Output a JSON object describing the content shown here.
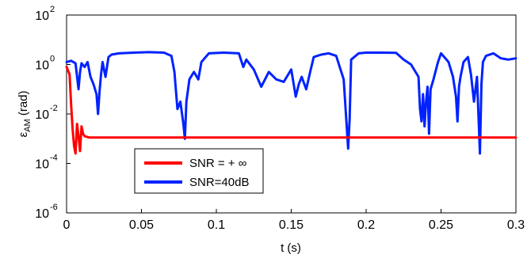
{
  "chart_data": {
    "type": "line",
    "xlabel": "t (s)",
    "ylabel": {
      "base": "ε",
      "sub": "AM",
      "rest": " (rad)"
    },
    "xlim": [
      0,
      0.3
    ],
    "ylim_log10": [
      -6,
      2
    ],
    "yscale": "log",
    "xticks": [
      {
        "v": 0,
        "label": "0"
      },
      {
        "v": 0.05,
        "label": "0.05"
      },
      {
        "v": 0.1,
        "label": "0.1"
      },
      {
        "v": 0.15,
        "label": "0.15"
      },
      {
        "v": 0.2,
        "label": "0.2"
      },
      {
        "v": 0.25,
        "label": "0.25"
      },
      {
        "v": 0.3,
        "label": "0.3"
      }
    ],
    "yticks": [
      {
        "v": -6,
        "base": "10",
        "exp": "-6"
      },
      {
        "v": -4,
        "base": "10",
        "exp": "-4"
      },
      {
        "v": -2,
        "base": "10",
        "exp": "-2"
      },
      {
        "v": 0,
        "base": "10",
        "exp": "0"
      },
      {
        "v": 2,
        "base": "10",
        "exp": "2"
      }
    ],
    "grid": false,
    "legend_position": "lower-left",
    "series": [
      {
        "name": "SNR = + ∞",
        "color": "#ff0000",
        "x": [
          0,
          0.002,
          0.003,
          0.004,
          0.005,
          0.006,
          0.007,
          0.008,
          0.009,
          0.01,
          0.011,
          0.012,
          0.015,
          0.05,
          0.1,
          0.15,
          0.2,
          0.25,
          0.3
        ],
        "y_log10": [
          -0.1,
          -0.4,
          -1.6,
          -2.6,
          -3.3,
          -3.6,
          -2.4,
          -2.9,
          -3.5,
          -2.5,
          -2.8,
          -2.9,
          -2.95,
          -2.95,
          -2.95,
          -2.95,
          -2.95,
          -2.95,
          -2.95
        ]
      },
      {
        "name": "SNR=40dB",
        "color": "#0022ff",
        "x": [
          0,
          0.003,
          0.006,
          0.008,
          0.009,
          0.01,
          0.012,
          0.014,
          0.016,
          0.018,
          0.02,
          0.021,
          0.022,
          0.023,
          0.024,
          0.026,
          0.028,
          0.03,
          0.035,
          0.045,
          0.055,
          0.065,
          0.07,
          0.072,
          0.074,
          0.076,
          0.078,
          0.079,
          0.08,
          0.082,
          0.085,
          0.088,
          0.09,
          0.095,
          0.105,
          0.115,
          0.118,
          0.12,
          0.125,
          0.13,
          0.135,
          0.14,
          0.145,
          0.15,
          0.153,
          0.155,
          0.157,
          0.16,
          0.163,
          0.165,
          0.17,
          0.175,
          0.18,
          0.185,
          0.188,
          0.189,
          0.19,
          0.195,
          0.2,
          0.21,
          0.22,
          0.225,
          0.23,
          0.235,
          0.236,
          0.237,
          0.238,
          0.239,
          0.24,
          0.241,
          0.242,
          0.243,
          0.245,
          0.248,
          0.25,
          0.255,
          0.258,
          0.26,
          0.261,
          0.262,
          0.263,
          0.265,
          0.268,
          0.27,
          0.272,
          0.274,
          0.276,
          0.277,
          0.278,
          0.28,
          0.285,
          0.29,
          0.295,
          0.3
        ],
        "y_log10": [
          0.1,
          0.15,
          0.05,
          -1.0,
          -0.3,
          0.05,
          -0.1,
          0.1,
          -0.5,
          -0.8,
          -1.2,
          -2.0,
          -1.1,
          -0.4,
          0.1,
          -0.5,
          0.3,
          0.4,
          0.45,
          0.48,
          0.5,
          0.48,
          0.35,
          -0.3,
          -1.8,
          -1.5,
          -2.4,
          -3.0,
          -1.5,
          -0.6,
          -0.3,
          -0.6,
          0.1,
          0.45,
          0.48,
          0.45,
          -0.1,
          0.2,
          -0.2,
          -0.9,
          -0.3,
          -0.6,
          -0.7,
          -0.2,
          -1.3,
          -0.8,
          -0.5,
          -1.0,
          -0.2,
          0.3,
          0.4,
          0.45,
          0.35,
          -0.6,
          -3.4,
          -2.2,
          0.2,
          0.45,
          0.48,
          0.48,
          0.47,
          0.2,
          0.0,
          -0.5,
          -1.8,
          -2.3,
          -1.2,
          -2.5,
          -1.5,
          -0.9,
          -2.8,
          -1.0,
          -0.6,
          0.1,
          0.45,
          0.1,
          -0.5,
          -1.3,
          -2.3,
          -0.9,
          -0.5,
          0.1,
          0.3,
          -0.4,
          -1.5,
          -0.5,
          -3.6,
          -0.8,
          0.1,
          0.35,
          0.45,
          0.25,
          0.2,
          0.25
        ]
      }
    ]
  }
}
